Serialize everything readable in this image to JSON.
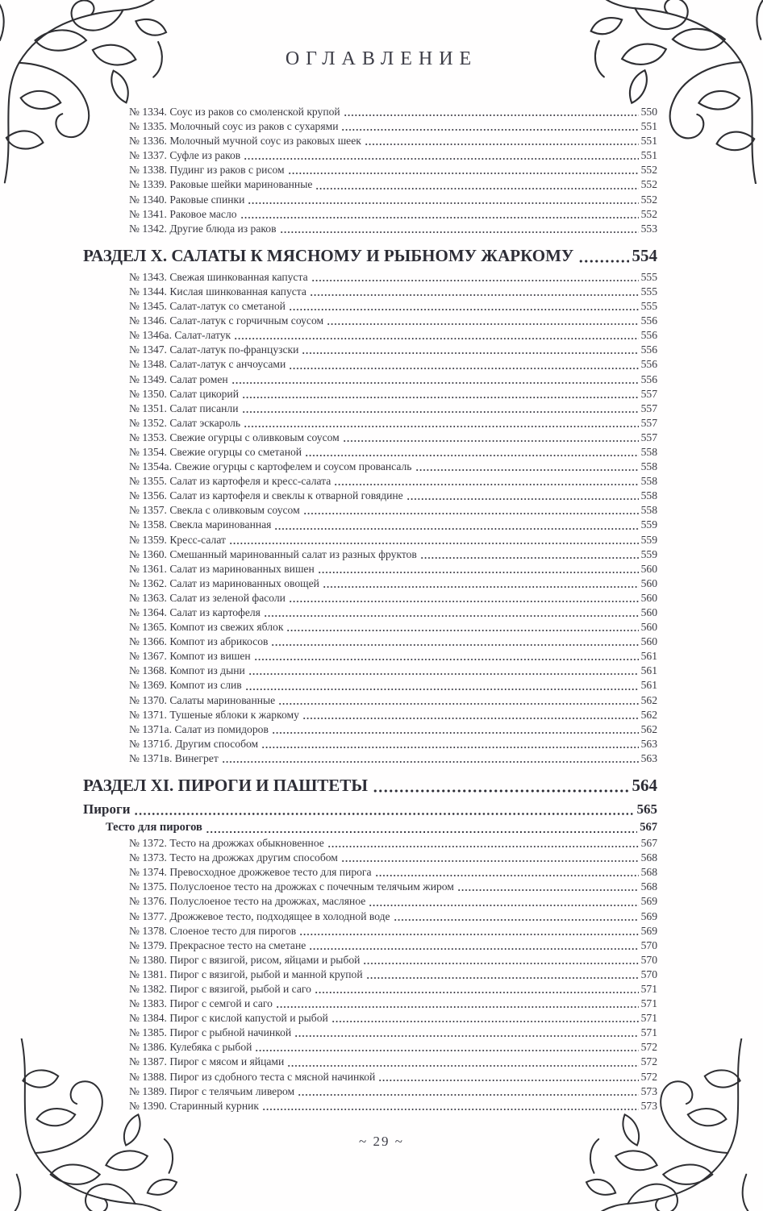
{
  "header": {
    "title": "ОГЛАВЛЕНИЕ"
  },
  "footer": {
    "page_number": "~ 29 ~"
  },
  "icons": {
    "corner_ornament": "floral-corner-flourish"
  },
  "colors": {
    "text": "#35353d",
    "heading": "#3c3c46",
    "ornament_stroke": "#2e2e32",
    "background": "#fffefe"
  },
  "toc_rows": [
    {
      "type": "entry",
      "text": "№ 1334. Соус из раков со смоленской крупой",
      "page": "550"
    },
    {
      "type": "entry",
      "text": "№ 1335. Молочный соус из раков с сухарями",
      "page": "551"
    },
    {
      "type": "entry",
      "text": "№ 1336. Молочный мучной соус из раковых шеек",
      "page": "551"
    },
    {
      "type": "entry",
      "text": "№ 1337. Суфле из раков",
      "page": "551"
    },
    {
      "type": "entry",
      "text": "№ 1338. Пудинг из раков с рисом",
      "page": "552"
    },
    {
      "type": "entry",
      "text": "№ 1339. Раковые шейки маринованные",
      "page": "552"
    },
    {
      "type": "entry",
      "text": "№ 1340. Раковые спинки",
      "page": "552"
    },
    {
      "type": "entry",
      "text": "№ 1341. Раковое масло",
      "page": "552"
    },
    {
      "type": "entry",
      "text": "№ 1342. Другие блюда из раков",
      "page": "553"
    },
    {
      "type": "section",
      "text": "РАЗДЕЛ X. САЛАТЫ К МЯСНОМУ И РЫБНОМУ ЖАРКОМУ",
      "page": "554"
    },
    {
      "type": "entry",
      "text": "№ 1343. Свежая шинкованная капуста",
      "page": "555"
    },
    {
      "type": "entry",
      "text": "№ 1344. Кислая шинкованная капуста",
      "page": "555"
    },
    {
      "type": "entry",
      "text": "№ 1345. Салат-латук со сметаной",
      "page": "555"
    },
    {
      "type": "entry",
      "text": "№ 1346. Салат-латук с горчичным соусом",
      "page": "556"
    },
    {
      "type": "entry",
      "text": "№ 1346а. Салат-латук",
      "page": "556"
    },
    {
      "type": "entry",
      "text": "№ 1347. Салат-латук по-французски",
      "page": "556"
    },
    {
      "type": "entry",
      "text": "№ 1348. Салат-латук с анчоусами",
      "page": "556"
    },
    {
      "type": "entry",
      "text": "№ 1349. Салат ромен",
      "page": "556"
    },
    {
      "type": "entry",
      "text": "№ 1350. Салат цикорий",
      "page": "557"
    },
    {
      "type": "entry",
      "text": "№ 1351. Салат писанли",
      "page": "557"
    },
    {
      "type": "entry",
      "text": "№ 1352. Салат эскароль",
      "page": "557"
    },
    {
      "type": "entry",
      "text": "№ 1353. Свежие огурцы с оливковым соусом",
      "page": "557"
    },
    {
      "type": "entry",
      "text": "№ 1354. Свежие огурцы со сметаной",
      "page": "558"
    },
    {
      "type": "entry",
      "text": "№ 1354а. Свежие огурцы с картофелем и соусом провансаль",
      "page": "558"
    },
    {
      "type": "entry",
      "text": "№ 1355. Салат из картофеля и кресс-салата",
      "page": "558"
    },
    {
      "type": "entry",
      "text": "№ 1356. Салат из картофеля и свеклы к отварной говядине",
      "page": "558"
    },
    {
      "type": "entry",
      "text": "№ 1357. Свекла с оливковым соусом",
      "page": "558"
    },
    {
      "type": "entry",
      "text": "№ 1358. Свекла маринованная",
      "page": "559"
    },
    {
      "type": "entry",
      "text": "№ 1359. Кресс-салат",
      "page": "559"
    },
    {
      "type": "entry",
      "text": "№ 1360. Смешанный маринованный салат из разных фруктов",
      "page": "559"
    },
    {
      "type": "entry",
      "text": "№ 1361. Салат из маринованных вишен",
      "page": "560"
    },
    {
      "type": "entry",
      "text": "№ 1362. Салат из маринованных овощей",
      "page": "560"
    },
    {
      "type": "entry",
      "text": "№ 1363. Салат из зеленой фасоли",
      "page": "560"
    },
    {
      "type": "entry",
      "text": "№ 1364. Салат из картофеля",
      "page": "560"
    },
    {
      "type": "entry",
      "text": "№ 1365. Компот из свежих яблок",
      "page": "560"
    },
    {
      "type": "entry",
      "text": "№ 1366. Компот из абрикосов",
      "page": "560"
    },
    {
      "type": "entry",
      "text": "№ 1367. Компот из вишен",
      "page": "561"
    },
    {
      "type": "entry",
      "text": "№ 1368. Компот из дыни",
      "page": "561"
    },
    {
      "type": "entry",
      "text": "№ 1369. Компот из слив",
      "page": "561"
    },
    {
      "type": "entry",
      "text": "№ 1370. Салаты маринованные",
      "page": "562"
    },
    {
      "type": "entry",
      "text": "№ 1371. Тушеные яблоки к жаркому",
      "page": "562"
    },
    {
      "type": "entry",
      "text": "№ 1371а. Салат из помидоров",
      "page": "562"
    },
    {
      "type": "entry",
      "text": "№ 1371б. Другим способом",
      "page": "563"
    },
    {
      "type": "entry",
      "text": "№ 1371в. Винегрет",
      "page": "563"
    },
    {
      "type": "section",
      "text": "РАЗДЕЛ XI. ПИРОГИ И ПАШТЕТЫ",
      "page": "564"
    },
    {
      "type": "sub1",
      "text": "Пироги",
      "page": "565"
    },
    {
      "type": "sub2",
      "text": "Тесто для пирогов",
      "page": "567"
    },
    {
      "type": "entry",
      "text": "№ 1372. Тесто на дрожжах обыкновенное",
      "page": "567"
    },
    {
      "type": "entry",
      "text": "№ 1373. Тесто на дрожжах другим способом",
      "page": "568"
    },
    {
      "type": "entry",
      "text": "№ 1374. Превосходное дрожжевое тесто для пирога",
      "page": "568"
    },
    {
      "type": "entry",
      "text": "№ 1375. Полуслоеное тесто на дрожжах с почечным телячьим жиром",
      "page": "568"
    },
    {
      "type": "entry",
      "text": "№ 1376. Полуслоеное тесто на дрожжах, масляное",
      "page": "569"
    },
    {
      "type": "entry",
      "text": "№ 1377. Дрожжевое тесто, подходящее в холодной воде",
      "page": "569"
    },
    {
      "type": "entry",
      "text": "№ 1378. Слоеное тесто для пирогов",
      "page": "569"
    },
    {
      "type": "entry",
      "text": "№ 1379. Прекрасное тесто на сметане",
      "page": "570"
    },
    {
      "type": "entry",
      "text": "№ 1380. Пирог с вязигой, рисом, яйцами и рыбой",
      "page": "570"
    },
    {
      "type": "entry",
      "text": "№ 1381. Пирог с вязигой, рыбой и манной крупой",
      "page": "570"
    },
    {
      "type": "entry",
      "text": "№ 1382. Пирог с вязигой, рыбой и саго",
      "page": "571"
    },
    {
      "type": "entry",
      "text": "№ 1383. Пирог с семгой и саго",
      "page": "571"
    },
    {
      "type": "entry",
      "text": "№ 1384. Пирог с кислой капустой и рыбой",
      "page": "571"
    },
    {
      "type": "entry",
      "text": "№ 1385. Пирог с рыбной начинкой",
      "page": "571"
    },
    {
      "type": "entry",
      "text": "№ 1386. Кулебяка с рыбой",
      "page": "572"
    },
    {
      "type": "entry",
      "text": "№ 1387. Пирог с мясом и яйцами",
      "page": "572"
    },
    {
      "type": "entry",
      "text": "№ 1388. Пирог из сдобного теста с мясной начинкой",
      "page": "572"
    },
    {
      "type": "entry",
      "text": "№ 1389. Пирог с телячьим ливером",
      "page": "573"
    },
    {
      "type": "entry",
      "text": "№ 1390. Старинный курник",
      "page": "573"
    }
  ]
}
